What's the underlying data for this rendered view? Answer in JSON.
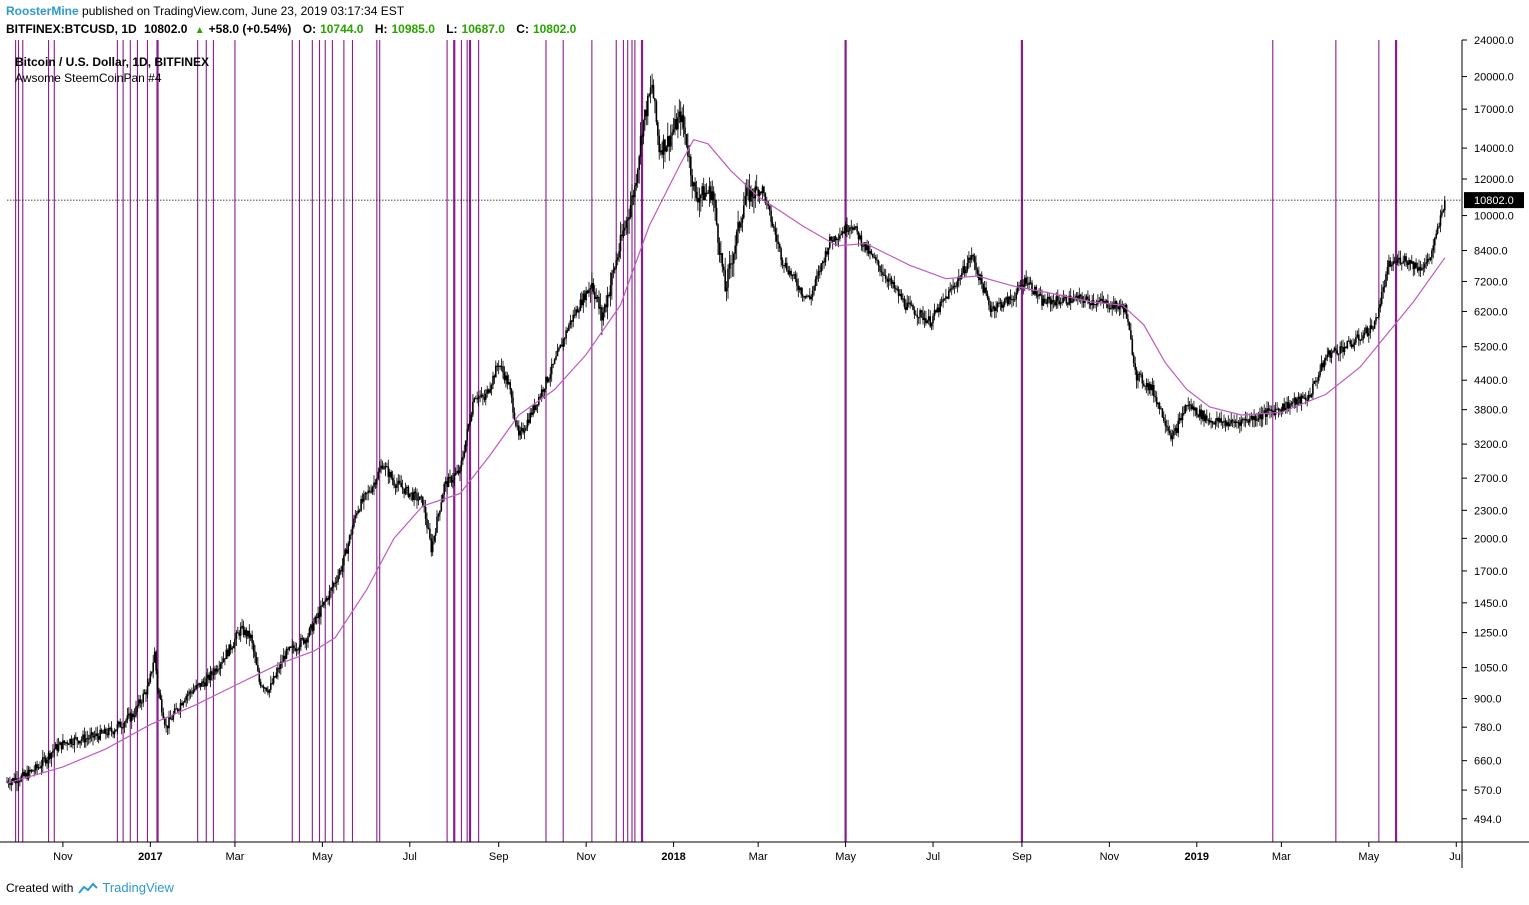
{
  "header": {
    "author": "RoosterMine",
    "published_text": "published on TradingView.com, June 23, 2019 03:17:34 EST",
    "symbol": "BITFINEX:BTCUSD, 1D",
    "last": "10802.0",
    "change": "+58.0 (+0.54%)",
    "open_label": "O:",
    "open": "10744.0",
    "high_label": "H:",
    "high": "10985.0",
    "low_label": "L:",
    "low": "10687.0",
    "close_label": "C:",
    "close": "10802.0"
  },
  "legend": {
    "title": "Bitcoin / U.S. Dollar, 1D, BITFINEX",
    "indicator": "Awsome SteemCoinPan #4"
  },
  "footer": {
    "created_with": "Created with",
    "brand": "TradingView"
  },
  "colors": {
    "candle": "#000000",
    "ma": "#c05ac0",
    "vline": "#8a1c8e",
    "brand": "#2e9ad0",
    "up": "#2aa300"
  },
  "chart_data": {
    "type": "line",
    "scale": "log",
    "ylim": [
      440,
      24000
    ],
    "x_range": [
      "2016-09-23",
      "2019-07-05"
    ],
    "y_ticks": [
      24000,
      20000,
      17000,
      14000,
      12000,
      10000,
      8400,
      7200,
      6200,
      5200,
      4400,
      3800,
      3200,
      2700,
      2300,
      2000,
      1700,
      1450,
      1250,
      1050,
      900,
      780,
      660,
      570,
      494
    ],
    "y_tick_labels": [
      "24000.0",
      "20000.0",
      "17000.0",
      "14000.0",
      "12000.0",
      "10000.0",
      "8400.0",
      "7200.0",
      "6200.0",
      "5200.0",
      "4400.0",
      "3800.0",
      "3200.0",
      "2700.0",
      "2300.0",
      "2000.0",
      "1700.0",
      "1450.0",
      "1250.0",
      "1050.0",
      "900.0",
      "780.0",
      "660.0",
      "570.0",
      "494.0"
    ],
    "x_ticks": [
      {
        "date": "2016-11-01",
        "label": "Nov",
        "bold": false
      },
      {
        "date": "2017-01-01",
        "label": "2017",
        "bold": true
      },
      {
        "date": "2017-03-01",
        "label": "Mar",
        "bold": false
      },
      {
        "date": "2017-05-01",
        "label": "May",
        "bold": false
      },
      {
        "date": "2017-07-01",
        "label": "Jul",
        "bold": false
      },
      {
        "date": "2017-09-01",
        "label": "Sep",
        "bold": false
      },
      {
        "date": "2017-11-01",
        "label": "Nov",
        "bold": false
      },
      {
        "date": "2018-01-01",
        "label": "2018",
        "bold": true
      },
      {
        "date": "2018-03-01",
        "label": "Mar",
        "bold": false
      },
      {
        "date": "2018-05-01",
        "label": "May",
        "bold": false
      },
      {
        "date": "2018-07-01",
        "label": "Jul",
        "bold": false
      },
      {
        "date": "2018-09-01",
        "label": "Sep",
        "bold": false
      },
      {
        "date": "2018-11-01",
        "label": "Nov",
        "bold": false
      },
      {
        "date": "2019-01-01",
        "label": "2019",
        "bold": true
      },
      {
        "date": "2019-03-01",
        "label": "Mar",
        "bold": false
      },
      {
        "date": "2019-05-01",
        "label": "May",
        "bold": false
      },
      {
        "date": "2019-07-01",
        "label": "Jul",
        "bold": false
      }
    ],
    "last_price": 10802.0,
    "last_price_label": "10802.0",
    "series": [
      {
        "kind": "price",
        "points": [
          [
            "2016-09-23",
            595
          ],
          [
            "2016-10-05",
            610
          ],
          [
            "2016-10-15",
            640
          ],
          [
            "2016-10-26",
            700
          ],
          [
            "2016-11-05",
            730
          ],
          [
            "2016-11-20",
            740
          ],
          [
            "2016-12-05",
            765
          ],
          [
            "2016-12-20",
            830
          ],
          [
            "2016-12-31",
            960
          ],
          [
            "2017-01-04",
            1130
          ],
          [
            "2017-01-06",
            950
          ],
          [
            "2017-01-12",
            780
          ],
          [
            "2017-01-25",
            910
          ],
          [
            "2017-02-10",
            990
          ],
          [
            "2017-02-25",
            1150
          ],
          [
            "2017-03-05",
            1270
          ],
          [
            "2017-03-12",
            1220
          ],
          [
            "2017-03-18",
            980
          ],
          [
            "2017-03-25",
            940
          ],
          [
            "2017-04-05",
            1120
          ],
          [
            "2017-04-20",
            1220
          ],
          [
            "2017-05-05",
            1500
          ],
          [
            "2017-05-15",
            1750
          ],
          [
            "2017-05-25",
            2300
          ],
          [
            "2017-06-05",
            2600
          ],
          [
            "2017-06-12",
            2900
          ],
          [
            "2017-06-20",
            2650
          ],
          [
            "2017-07-01",
            2500
          ],
          [
            "2017-07-10",
            2400
          ],
          [
            "2017-07-16",
            1900
          ],
          [
            "2017-07-25",
            2600
          ],
          [
            "2017-08-05",
            2800
          ],
          [
            "2017-08-15",
            4100
          ],
          [
            "2017-08-22",
            4000
          ],
          [
            "2017-09-01",
            4800
          ],
          [
            "2017-09-08",
            4300
          ],
          [
            "2017-09-15",
            3300
          ],
          [
            "2017-09-25",
            3800
          ],
          [
            "2017-10-10",
            4800
          ],
          [
            "2017-10-20",
            5800
          ],
          [
            "2017-11-05",
            7200
          ],
          [
            "2017-11-12",
            6000
          ],
          [
            "2017-11-25",
            8700
          ],
          [
            "2017-12-05",
            11500
          ],
          [
            "2017-12-10",
            15500
          ],
          [
            "2017-12-17",
            19200
          ],
          [
            "2017-12-22",
            14000
          ],
          [
            "2017-12-28",
            14500
          ],
          [
            "2018-01-06",
            16500
          ],
          [
            "2018-01-10",
            14500
          ],
          [
            "2018-01-16",
            11000
          ],
          [
            "2018-01-28",
            11300
          ],
          [
            "2018-02-06",
            6900
          ],
          [
            "2018-02-20",
            11000
          ],
          [
            "2018-03-04",
            11400
          ],
          [
            "2018-03-18",
            8000
          ],
          [
            "2018-04-01",
            6800
          ],
          [
            "2018-04-06",
            6600
          ],
          [
            "2018-04-20",
            8800
          ],
          [
            "2018-05-05",
            9600
          ],
          [
            "2018-05-15",
            8500
          ],
          [
            "2018-05-29",
            7400
          ],
          [
            "2018-06-12",
            6400
          ],
          [
            "2018-06-29",
            5900
          ],
          [
            "2018-07-20",
            7400
          ],
          [
            "2018-07-28",
            8200
          ],
          [
            "2018-08-10",
            6300
          ],
          [
            "2018-08-25",
            6600
          ],
          [
            "2018-09-04",
            7300
          ],
          [
            "2018-09-15",
            6500
          ],
          [
            "2018-10-10",
            6600
          ],
          [
            "2018-10-25",
            6500
          ],
          [
            "2018-11-12",
            6300
          ],
          [
            "2018-11-20",
            4500
          ],
          [
            "2018-12-01",
            4200
          ],
          [
            "2018-12-15",
            3300
          ],
          [
            "2018-12-25",
            3900
          ],
          [
            "2019-01-10",
            3600
          ],
          [
            "2019-01-25",
            3550
          ],
          [
            "2019-02-10",
            3650
          ],
          [
            "2019-02-25",
            3800
          ],
          [
            "2019-03-20",
            4050
          ],
          [
            "2019-04-02",
            5000
          ],
          [
            "2019-04-20",
            5300
          ],
          [
            "2019-05-05",
            5800
          ],
          [
            "2019-05-15",
            7800
          ],
          [
            "2019-05-25",
            8100
          ],
          [
            "2019-06-05",
            7700
          ],
          [
            "2019-06-12",
            8000
          ],
          [
            "2019-06-17",
            9000
          ],
          [
            "2019-06-23",
            10802
          ]
        ]
      },
      {
        "kind": "moving_average",
        "points": [
          [
            "2016-09-23",
            590
          ],
          [
            "2016-11-01",
            640
          ],
          [
            "2016-12-01",
            700
          ],
          [
            "2017-01-01",
            790
          ],
          [
            "2017-02-01",
            870
          ],
          [
            "2017-03-01",
            960
          ],
          [
            "2017-04-01",
            1070
          ],
          [
            "2017-04-25",
            1140
          ],
          [
            "2017-05-10",
            1220
          ],
          [
            "2017-06-01",
            1550
          ],
          [
            "2017-06-20",
            2000
          ],
          [
            "2017-07-10",
            2350
          ],
          [
            "2017-08-05",
            2500
          ],
          [
            "2017-08-25",
            3000
          ],
          [
            "2017-09-15",
            3700
          ],
          [
            "2017-10-10",
            4200
          ],
          [
            "2017-11-01",
            5000
          ],
          [
            "2017-11-25",
            6400
          ],
          [
            "2017-12-15",
            9500
          ],
          [
            "2018-01-05",
            12800
          ],
          [
            "2018-01-15",
            14600
          ],
          [
            "2018-01-25",
            14300
          ],
          [
            "2018-02-10",
            12500
          ],
          [
            "2018-03-01",
            11000
          ],
          [
            "2018-04-01",
            9500
          ],
          [
            "2018-04-25",
            8600
          ],
          [
            "2018-05-15",
            8700
          ],
          [
            "2018-06-15",
            7800
          ],
          [
            "2018-07-10",
            7300
          ],
          [
            "2018-08-01",
            7400
          ],
          [
            "2018-08-25",
            7050
          ],
          [
            "2018-09-20",
            6800
          ],
          [
            "2018-10-20",
            6500
          ],
          [
            "2018-11-10",
            6400
          ],
          [
            "2018-11-25",
            5800
          ],
          [
            "2018-12-10",
            4800
          ],
          [
            "2018-12-25",
            4200
          ],
          [
            "2019-01-10",
            3850
          ],
          [
            "2019-02-01",
            3700
          ],
          [
            "2019-03-01",
            3750
          ],
          [
            "2019-04-01",
            4100
          ],
          [
            "2019-04-25",
            4700
          ],
          [
            "2019-05-15",
            5600
          ],
          [
            "2019-06-01",
            6500
          ],
          [
            "2019-06-23",
            8100
          ]
        ]
      }
    ],
    "vertical_markers": [
      "2016-09-29",
      "2016-10-01",
      "2016-10-04",
      "2016-10-22",
      "2016-10-26",
      "2016-12-09",
      "2016-12-13",
      "2016-12-18",
      "2016-12-23",
      "2016-12-30",
      "2017-01-06",
      "2017-02-03",
      "2017-02-09",
      "2017-02-14",
      "2017-03-01",
      "2017-04-10",
      "2017-04-15",
      "2017-04-24",
      "2017-04-29",
      "2017-05-03",
      "2017-05-08",
      "2017-05-16",
      "2017-05-22",
      "2017-06-08",
      "2017-06-10",
      "2017-07-27",
      "2017-08-01",
      "2017-08-06",
      "2017-08-10",
      "2017-08-12",
      "2017-08-18",
      "2017-10-04",
      "2017-10-16",
      "2017-11-05",
      "2017-11-22",
      "2017-11-27",
      "2017-11-30",
      "2017-12-03",
      "2017-12-05",
      "2017-12-10",
      "2018-05-01",
      "2018-09-01",
      "2019-02-23",
      "2019-04-08",
      "2019-05-08",
      "2019-05-20"
    ],
    "thick_markers": [
      "2017-01-06",
      "2017-08-01",
      "2017-08-12",
      "2017-12-10",
      "2018-05-01",
      "2018-09-01",
      "2019-05-20"
    ]
  }
}
